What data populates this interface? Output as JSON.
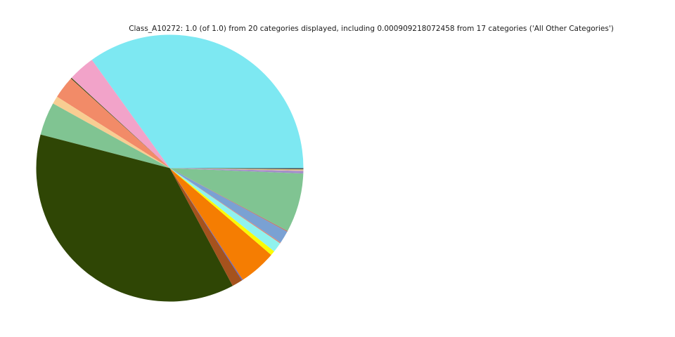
{
  "chart_data": {
    "type": "pie",
    "title": "Class_A10272: 1.0 (of 1.0) from 20 categories displayed, including 0.000909218072458 from 17 categories ('All Other Categories')",
    "total": 1.0,
    "categories_displayed": 20,
    "all_other_categories_value": "0.000909218072458",
    "all_other_categories_count": 17,
    "start_angle_deg": 0,
    "direction": "counterclockwise",
    "legend": "none",
    "background": "#ffffff",
    "slices": [
      {
        "name": "slice-1-cyan",
        "color": "#7DE8F2",
        "value_deg": 125.7,
        "fraction": 0.3492
      },
      {
        "name": "slice-2-pink",
        "color": "#F2A3C9",
        "value_deg": 11.7,
        "fraction": 0.0325
      },
      {
        "name": "slice-3-darkolive-thin",
        "color": "#3A4A12",
        "value_deg": 0.4,
        "fraction": 0.0011
      },
      {
        "name": "slice-4-salmon",
        "color": "#F28B68",
        "value_deg": 9.8,
        "fraction": 0.0272
      },
      {
        "name": "slice-5-wheat",
        "color": "#F8CD92",
        "value_deg": 3.4,
        "fraction": 0.0094
      },
      {
        "name": "slice-6-seagreen",
        "color": "#80C492",
        "value_deg": 14.4,
        "fraction": 0.04
      },
      {
        "name": "slice-7-darkolive",
        "color": "#2F4605",
        "value_deg": 132.7,
        "fraction": 0.3686
      },
      {
        "name": "slice-8-sienna",
        "color": "#A5521D",
        "value_deg": 4.6,
        "fraction": 0.0128
      },
      {
        "name": "slice-9-slateblue-thin",
        "color": "#5B62C9",
        "value_deg": 0.4,
        "fraction": 0.0011
      },
      {
        "name": "slice-10-orange",
        "color": "#F57D02",
        "value_deg": 16.3,
        "fraction": 0.0453
      },
      {
        "name": "slice-11-yellow",
        "color": "#FBFB04",
        "value_deg": 2.0,
        "fraction": 0.0056
      },
      {
        "name": "slice-12-palecyan",
        "color": "#90F2EE",
        "value_deg": 4.3,
        "fraction": 0.0119
      },
      {
        "name": "slice-13-salmon-thin",
        "color": "#E2836E",
        "value_deg": 0.4,
        "fraction": 0.0011
      },
      {
        "name": "slice-14-cornflower",
        "color": "#7AA1D3",
        "value_deg": 5.4,
        "fraction": 0.015
      },
      {
        "name": "slice-15-rust-thin",
        "color": "#C0706A",
        "value_deg": 0.4,
        "fraction": 0.0011
      },
      {
        "name": "slice-16-seagreen2",
        "color": "#80C492",
        "value_deg": 25.8,
        "fraction": 0.0717
      },
      {
        "name": "slice-17-purple",
        "color": "#A28FC9",
        "value_deg": 1.1,
        "fraction": 0.0031
      },
      {
        "name": "slice-18-pink-thin",
        "color": "#EBA6BE",
        "value_deg": 0.2,
        "fraction": 0.0006
      },
      {
        "name": "slice-19-tan-thin",
        "color": "#D8C07E",
        "value_deg": 0.5,
        "fraction": 0.0014
      },
      {
        "name": "slice-20-darkgray-thin",
        "color": "#4F4F52",
        "value_deg": 0.5,
        "fraction": 0.0014
      }
    ]
  }
}
